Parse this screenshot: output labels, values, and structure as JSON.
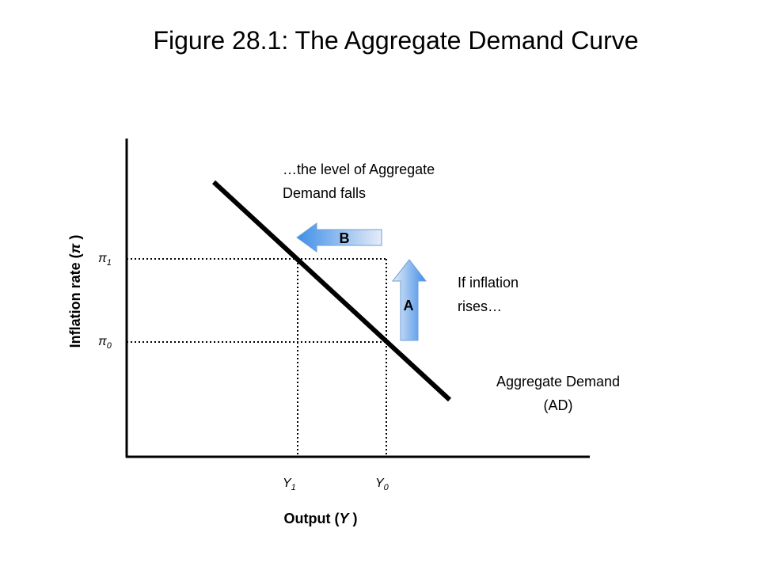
{
  "title": "Figure 28.1: The Aggregate Demand Curve",
  "y_axis_label": {
    "before": "Inflation rate (",
    "symbol": "π",
    "after": " )"
  },
  "x_axis_label": {
    "before": "Output (",
    "symbol": "Y",
    "after": " )"
  },
  "y_ticks": [
    {
      "symbol": "π",
      "sub": "1"
    },
    {
      "symbol": "π",
      "sub": "0"
    }
  ],
  "x_ticks": [
    {
      "symbol": "Y",
      "sub": "1"
    },
    {
      "symbol": "Y",
      "sub": "0"
    }
  ],
  "annotations": {
    "demand_falls": [
      "…the level of Aggregate",
      "Demand falls"
    ],
    "inflation_rises": [
      "If inflation",
      "rises…"
    ],
    "curve_label": [
      "Aggregate Demand",
      "(AD)"
    ]
  },
  "arrows": {
    "a": "A",
    "b": "B"
  }
}
